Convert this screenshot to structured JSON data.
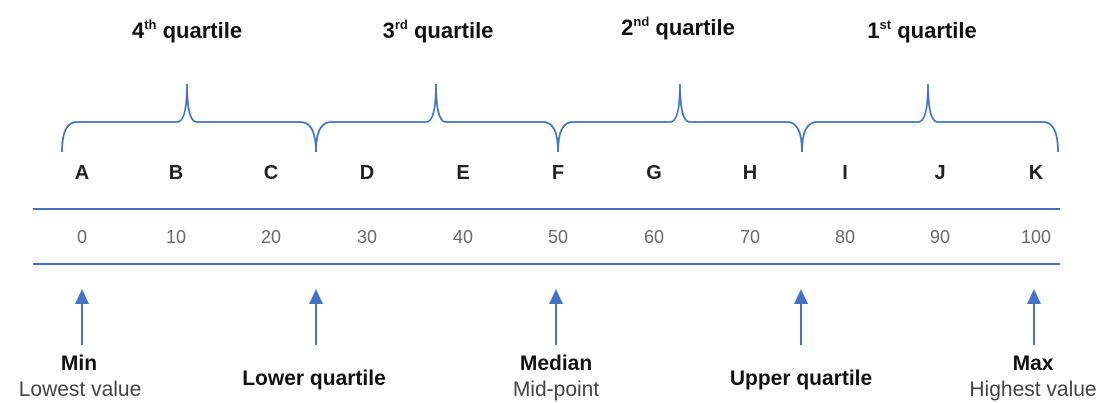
{
  "quartiles": [
    {
      "base": "4",
      "sup": "th",
      "label": "quartile"
    },
    {
      "base": "3",
      "sup": "rd",
      "label": "quartile"
    },
    {
      "base": "2",
      "sup": "nd",
      "label": "quartile"
    },
    {
      "base": "1",
      "sup": "st",
      "label": "quartile"
    }
  ],
  "scale": {
    "letters": [
      "A",
      "B",
      "C",
      "D",
      "E",
      "F",
      "G",
      "H",
      "I",
      "J",
      "K"
    ],
    "values": [
      "0",
      "10",
      "20",
      "30",
      "40",
      "50",
      "60",
      "70",
      "80",
      "90",
      "100"
    ]
  },
  "markers": [
    {
      "title": "Min",
      "subtitle": "Lowest value"
    },
    {
      "title": "Lower quartile",
      "subtitle": ""
    },
    {
      "title": "Median",
      "subtitle": "Mid-point"
    },
    {
      "title": "Upper quartile",
      "subtitle": ""
    },
    {
      "title": "Max",
      "subtitle": "Highest value"
    }
  ],
  "colors": {
    "accent": "#4472c4",
    "line": "#4a6fb5",
    "letters": "#222222",
    "numbers": "#6a6a6a"
  }
}
